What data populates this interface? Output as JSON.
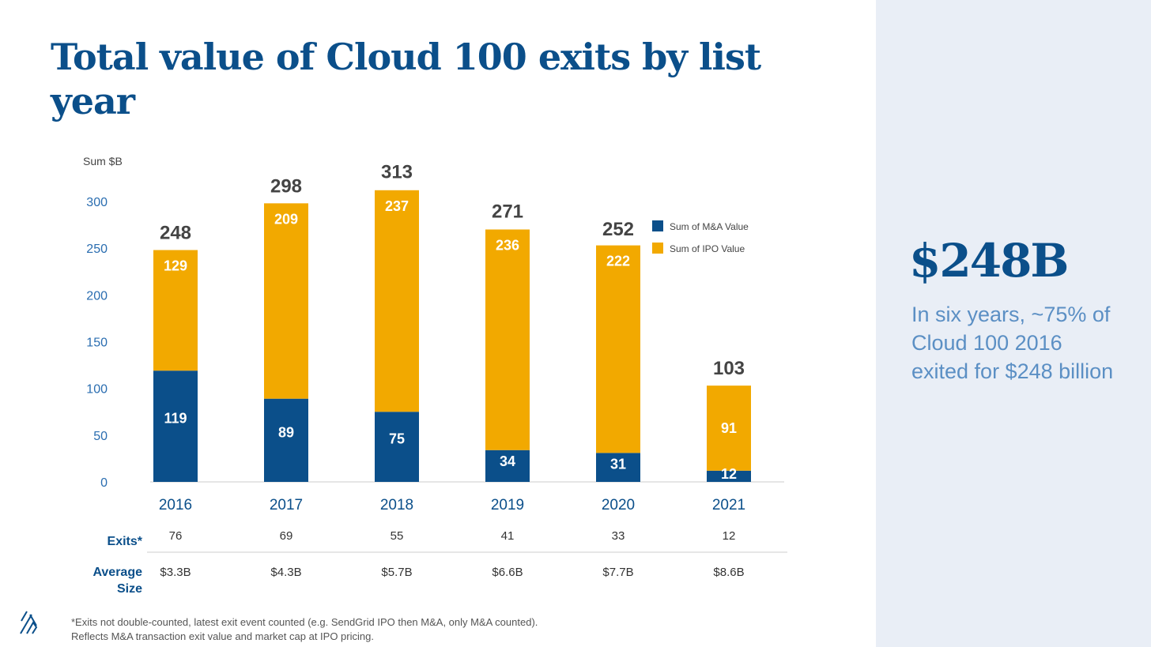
{
  "title": "Total value of Cloud 100 exits by list year",
  "highlight": {
    "value": "$248B",
    "text": "In six years, ~75% of Cloud 100 2016 exited for $248 billion"
  },
  "footnote": [
    "*Exits not double-counted, latest exit event counted (e.g. SendGrid IPO then M&A, only M&A counted).",
    "Reflects M&A transaction exit value and market cap at IPO pricing."
  ],
  "chart_data": {
    "type": "bar",
    "stacked": true,
    "ylabel": "Sum $B",
    "ylim": [
      0,
      300
    ],
    "yticks": [
      0,
      50,
      100,
      150,
      200,
      250,
      300
    ],
    "categories": [
      "2016",
      "2017",
      "2018",
      "2019",
      "2020",
      "2021"
    ],
    "series": [
      {
        "name": "Sum of M&A Value",
        "color": "#0b4f8a",
        "values": [
          119,
          89,
          75,
          34,
          31,
          12
        ]
      },
      {
        "name": "Sum of IPO Value",
        "color": "#f2a900",
        "values": [
          129,
          209,
          237,
          236,
          222,
          91
        ]
      }
    ],
    "totals": [
      248,
      298,
      313,
      271,
      252,
      103
    ],
    "legend": "top-right",
    "grid": false
  },
  "table": {
    "rows": [
      {
        "label": "Exits*",
        "values": [
          "76",
          "69",
          "55",
          "41",
          "33",
          "12"
        ]
      },
      {
        "label": "Average Size",
        "values": [
          "$3.3B",
          "$4.3B",
          "$5.7B",
          "$6.6B",
          "$7.7B",
          "$8.6B"
        ]
      }
    ]
  }
}
